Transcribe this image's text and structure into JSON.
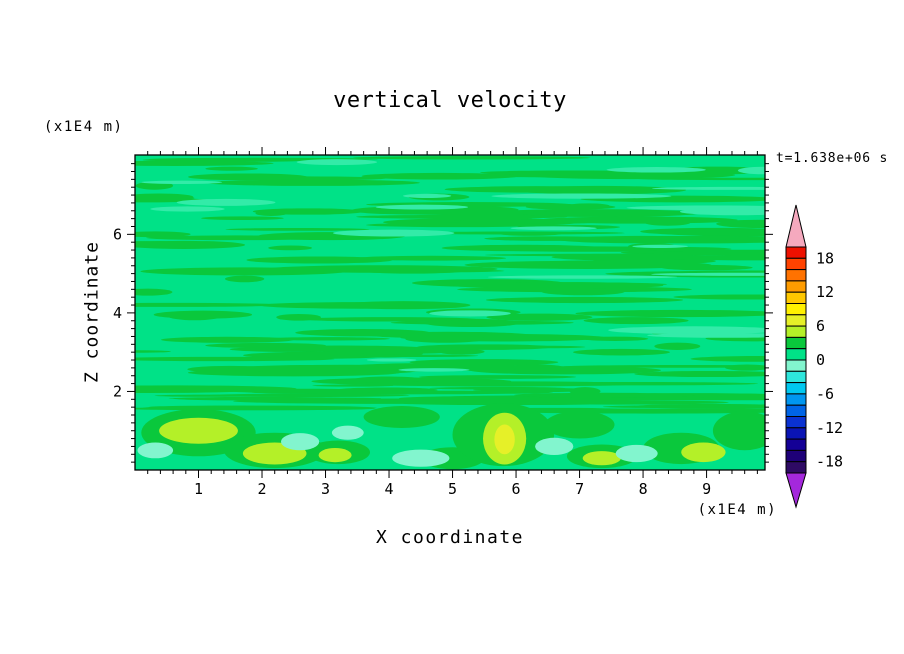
{
  "chart_data": {
    "type": "heatmap",
    "title": "vertical velocity",
    "xlabel": "X coordinate",
    "ylabel": "Z coordinate",
    "x_unit_label": "(x1E4 m)",
    "y_unit_label": "(x1E4 m)",
    "time_label": "t=1.638e+06 s",
    "x_range": [
      0,
      9.92
    ],
    "z_range": [
      0,
      8.02
    ],
    "x_ticks_major": [
      1,
      2,
      3,
      4,
      5,
      6,
      7,
      8,
      9
    ],
    "z_ticks_major": [
      2,
      4,
      6
    ],
    "x_minor_step": 0.2,
    "z_minor_step": 0.2,
    "grid": false,
    "legend_position": "right-colorbar",
    "colorbar": {
      "value_max": 20,
      "value_min": -20,
      "step": 2,
      "labels": [
        18,
        12,
        6,
        0,
        -6,
        -12,
        -18
      ],
      "segment_colors": [
        "#EE1000",
        "#FF4200",
        "#FF7200",
        "#FF9C00",
        "#FFC800",
        "#FFF000",
        "#E6F028",
        "#B4F028",
        "#0AC83C",
        "#00E287",
        "#82F5CE",
        "#2EE6DC",
        "#00C8F0",
        "#0096F0",
        "#0064E6",
        "#0A32D2",
        "#0A14B4",
        "#140096",
        "#1E0078",
        "#2E0A64"
      ],
      "over_color": "#F5A9BE",
      "under_color": "#A428DC"
    },
    "colors": {
      "base": "#00E287",
      "streak": "#0AC83C",
      "pale_streak": "#33EBA8"
    },
    "level_colors": {
      "6to8": "#E6F028",
      "4to6": "#B4F028",
      "2to4": "#0AC83C",
      "-2to0": "#82F5CE"
    },
    "texture": {
      "seed": 7,
      "dark_streaks": 150,
      "pale_streaks": 22,
      "band_streaks": 30,
      "z_min": 2.0,
      "z_max": 7.95,
      "band_z_min": 1.5,
      "band_z_max": 2.2
    },
    "features": [
      {
        "x": 1.0,
        "z": 0.95,
        "rx": 0.9,
        "rz": 0.6,
        "level": "2to4"
      },
      {
        "x": 2.2,
        "z": 0.5,
        "rx": 0.8,
        "rz": 0.45,
        "level": "2to4"
      },
      {
        "x": 3.2,
        "z": 0.45,
        "rx": 0.5,
        "rz": 0.3,
        "level": "2to4"
      },
      {
        "x": 4.2,
        "z": 1.35,
        "rx": 0.6,
        "rz": 0.28,
        "level": "2to4"
      },
      {
        "x": 5.0,
        "z": 0.3,
        "rx": 0.5,
        "rz": 0.28,
        "level": "2to4"
      },
      {
        "x": 5.8,
        "z": 0.9,
        "rx": 0.8,
        "rz": 0.8,
        "level": "2to4"
      },
      {
        "x": 7.0,
        "z": 1.15,
        "rx": 0.55,
        "rz": 0.35,
        "level": "2to4"
      },
      {
        "x": 7.35,
        "z": 0.35,
        "rx": 0.55,
        "rz": 0.3,
        "level": "2to4"
      },
      {
        "x": 8.6,
        "z": 0.55,
        "rx": 0.6,
        "rz": 0.4,
        "level": "2to4"
      },
      {
        "x": 9.6,
        "z": 1.0,
        "rx": 0.5,
        "rz": 0.5,
        "level": "2to4"
      },
      {
        "x": 1.0,
        "z": 1.0,
        "rx": 0.62,
        "rz": 0.33,
        "level": "4to6"
      },
      {
        "x": 2.2,
        "z": 0.42,
        "rx": 0.5,
        "rz": 0.28,
        "level": "4to6"
      },
      {
        "x": 3.15,
        "z": 0.38,
        "rx": 0.26,
        "rz": 0.18,
        "level": "4to6"
      },
      {
        "x": 5.82,
        "z": 0.8,
        "rx": 0.34,
        "rz": 0.66,
        "level": "4to6"
      },
      {
        "x": 7.35,
        "z": 0.3,
        "rx": 0.3,
        "rz": 0.18,
        "level": "4to6"
      },
      {
        "x": 8.95,
        "z": 0.45,
        "rx": 0.35,
        "rz": 0.25,
        "level": "4to6"
      },
      {
        "x": 5.82,
        "z": 0.78,
        "rx": 0.16,
        "rz": 0.38,
        "level": "6to8"
      },
      {
        "x": 0.32,
        "z": 0.5,
        "rx": 0.28,
        "rz": 0.2,
        "level": "-2to0"
      },
      {
        "x": 2.6,
        "z": 0.72,
        "rx": 0.3,
        "rz": 0.22,
        "level": "-2to0"
      },
      {
        "x": 3.35,
        "z": 0.95,
        "rx": 0.25,
        "rz": 0.18,
        "level": "-2to0"
      },
      {
        "x": 4.5,
        "z": 0.3,
        "rx": 0.45,
        "rz": 0.22,
        "level": "-2to0"
      },
      {
        "x": 6.6,
        "z": 0.6,
        "rx": 0.3,
        "rz": 0.22,
        "level": "-2to0"
      },
      {
        "x": 7.9,
        "z": 0.42,
        "rx": 0.33,
        "rz": 0.22,
        "level": "-2to0"
      }
    ],
    "field_summary": "Filled contour plot of vertical velocity at t=1.638e+06 s. Above z~2e4 m the field is nearly uniform in the 0-2 band (spring green) with many thin horizontal streaks in the 2-4 band (green). Below z~2e4 m there are convective cells: updraft patches in the 4-6 band (yellow-green) near x~1.0, 2.2, 3.15, 7.35 and 8.95 e4 m, a stronger updraft core in the 6-8 band (yellow) near x~5.8e4 m, and weak downdraft patches in the -2-0 band (pale aquamarine) near x~0.3, 2.6, 4.5, 6.6 and 7.9 e4 m."
  }
}
